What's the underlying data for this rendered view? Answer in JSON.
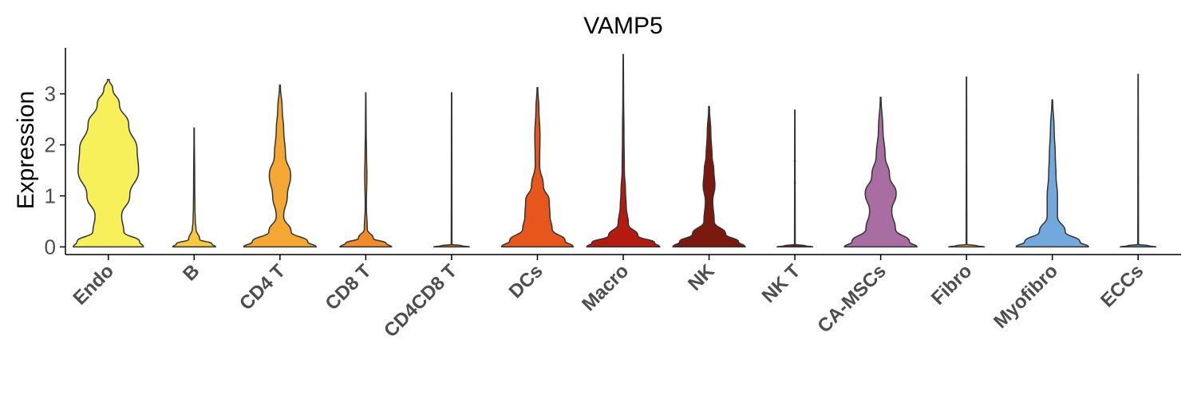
{
  "chart_data": {
    "type": "violin",
    "title": "VAMP5",
    "xlabel": "",
    "ylabel": "Expression",
    "ylim": [
      -0.15,
      3.9
    ],
    "yticks": [
      0,
      1,
      2,
      3
    ],
    "categories": [
      "Endo",
      "B",
      "CD4 T",
      "CD8 T",
      "CD4CD8 T",
      "DCs",
      "Macro",
      "NK",
      "NK T",
      "CA-MSCs",
      "Fibro",
      "Myofibro",
      "ECCs"
    ],
    "colors": [
      "#f7f05a",
      "#f8c93f",
      "#f5a734",
      "#f08a2a",
      "#ea6b22",
      "#e6561d",
      "#b31b10",
      "#7a1a0e",
      "#7a1a0e",
      "#a86ea1",
      "#f5a734",
      "#72a8db",
      "#5b9bd5"
    ],
    "max_values": [
      3.28,
      2.33,
      3.17,
      3.02,
      3.02,
      3.12,
      3.77,
      2.75,
      2.68,
      2.93,
      3.33,
      2.88,
      3.38
    ],
    "grid": false,
    "legend": "none"
  }
}
